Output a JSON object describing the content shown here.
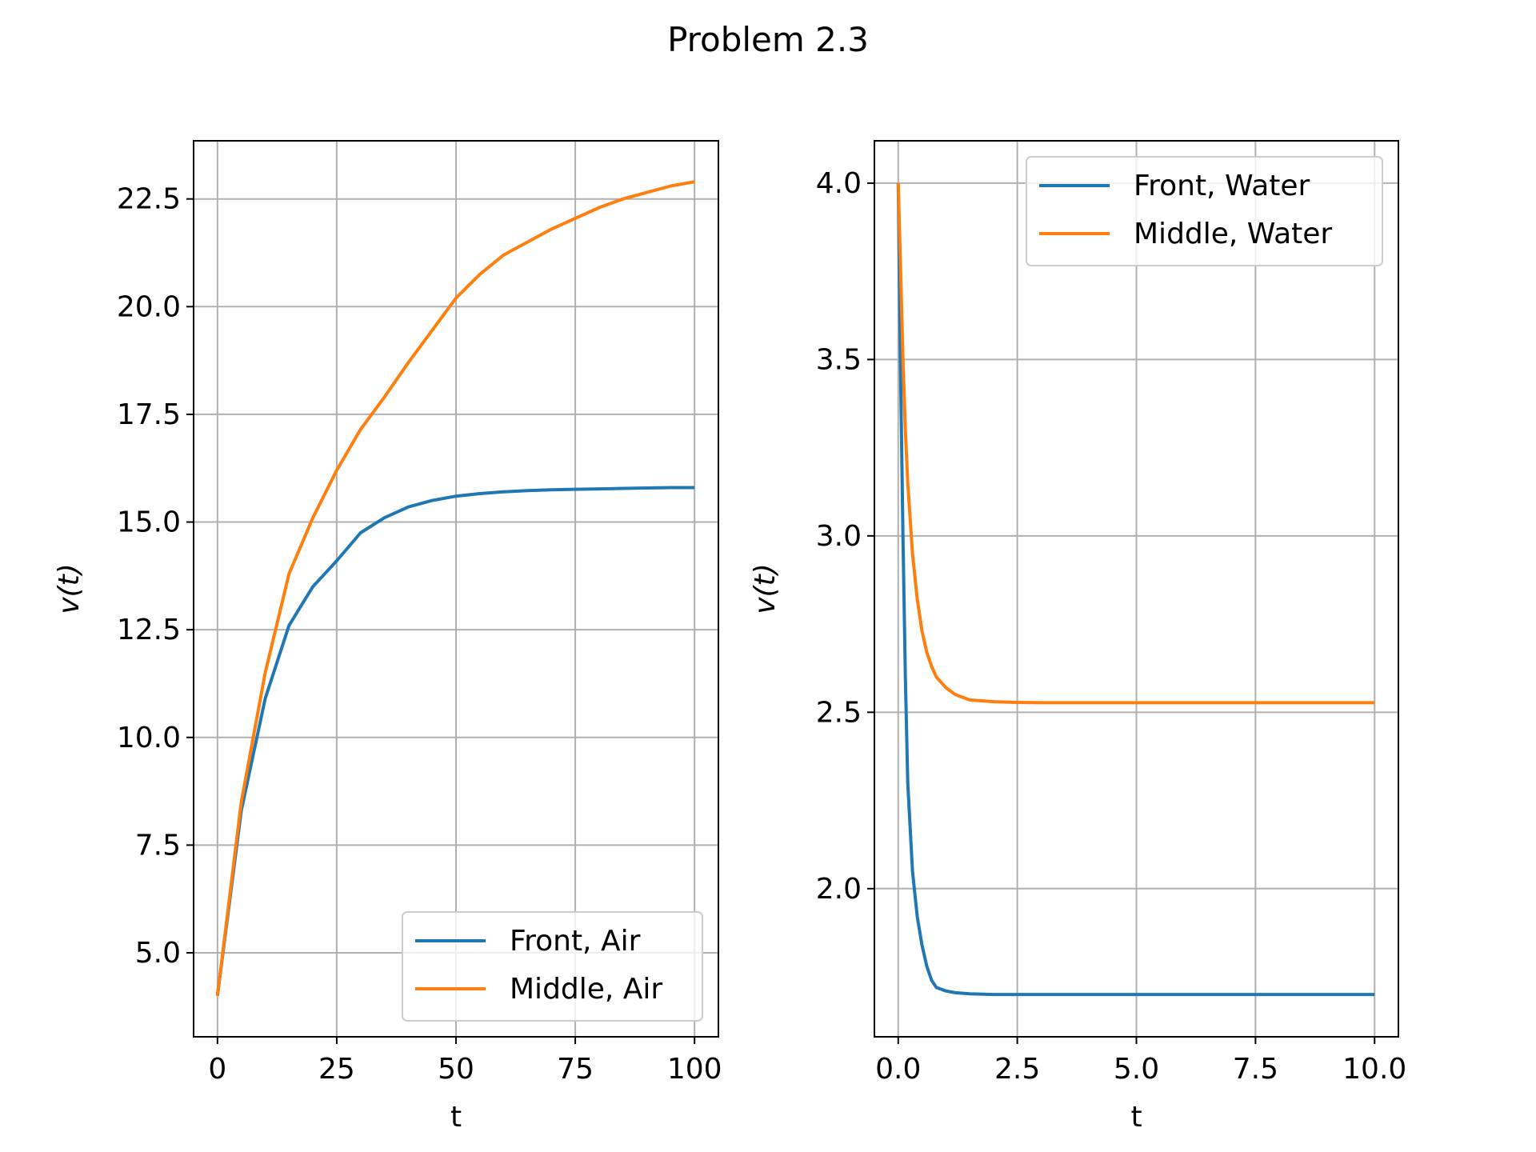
{
  "figure": {
    "title": "Problem 2.3"
  },
  "colors": {
    "front": "#1f77b4",
    "middle": "#ff7f0e",
    "grid": "#b0b0b0"
  },
  "chart_data": [
    {
      "type": "line",
      "xlabel": "t",
      "ylabel": "v(t)",
      "xlim": [
        -5,
        105
      ],
      "ylim": [
        3.05,
        23.85
      ],
      "xticks": [
        0,
        25,
        50,
        75,
        100
      ],
      "xtick_labels": [
        "0",
        "25",
        "50",
        "75",
        "100"
      ],
      "yticks": [
        5.0,
        7.5,
        10.0,
        12.5,
        15.0,
        17.5,
        20.0,
        22.5
      ],
      "ytick_labels": [
        "5.0",
        "7.5",
        "10.0",
        "12.5",
        "15.0",
        "17.5",
        "20.0",
        "22.5"
      ],
      "grid": true,
      "legend_position": "lower right",
      "series": [
        {
          "name": "Front, Air",
          "color": "#1f77b4",
          "x": [
            0,
            5,
            10,
            15,
            20,
            25,
            30,
            35,
            40,
            45,
            50,
            55,
            60,
            65,
            70,
            75,
            80,
            85,
            90,
            95,
            100
          ],
          "y": [
            4.0,
            8.3,
            10.9,
            12.6,
            13.5,
            14.1,
            14.75,
            15.1,
            15.35,
            15.5,
            15.6,
            15.66,
            15.7,
            15.73,
            15.75,
            15.76,
            15.77,
            15.78,
            15.79,
            15.8,
            15.8
          ]
        },
        {
          "name": "Middle, Air",
          "color": "#ff7f0e",
          "x": [
            0,
            5,
            10,
            15,
            20,
            25,
            30,
            35,
            40,
            45,
            50,
            55,
            60,
            65,
            70,
            75,
            80,
            85,
            90,
            95,
            100
          ],
          "y": [
            4.0,
            8.5,
            11.5,
            13.8,
            15.1,
            16.2,
            17.15,
            17.9,
            18.7,
            19.45,
            20.2,
            20.75,
            21.2,
            21.5,
            21.8,
            22.05,
            22.3,
            22.5,
            22.65,
            22.8,
            22.9
          ]
        }
      ]
    },
    {
      "type": "line",
      "xlabel": "t",
      "ylabel": "v(t)",
      "xlim": [
        -0.5,
        10.5
      ],
      "ylim": [
        1.58,
        4.12
      ],
      "xticks": [
        0.0,
        2.5,
        5.0,
        7.5,
        10.0
      ],
      "xtick_labels": [
        "0.0",
        "2.5",
        "5.0",
        "7.5",
        "10.0"
      ],
      "yticks": [
        2.0,
        2.5,
        3.0,
        3.5,
        4.0
      ],
      "ytick_labels": [
        "2.0",
        "2.5",
        "3.0",
        "3.5",
        "4.0"
      ],
      "grid": true,
      "legend_position": "upper right",
      "series": [
        {
          "name": "Front, Water",
          "color": "#1f77b4",
          "x": [
            0,
            0.05,
            0.1,
            0.15,
            0.2,
            0.3,
            0.4,
            0.5,
            0.6,
            0.7,
            0.8,
            1.0,
            1.2,
            1.5,
            2,
            3,
            5,
            7.5,
            10
          ],
          "y": [
            4.0,
            3.45,
            3.0,
            2.6,
            2.3,
            2.05,
            1.92,
            1.84,
            1.78,
            1.74,
            1.72,
            1.71,
            1.705,
            1.702,
            1.7,
            1.7,
            1.7,
            1.7,
            1.7
          ]
        },
        {
          "name": "Middle, Water",
          "color": "#ff7f0e",
          "x": [
            0,
            0.05,
            0.1,
            0.15,
            0.2,
            0.3,
            0.4,
            0.5,
            0.6,
            0.7,
            0.8,
            1.0,
            1.2,
            1.5,
            2,
            2.5,
            3,
            5,
            7.5,
            10
          ],
          "y": [
            4.0,
            3.75,
            3.5,
            3.3,
            3.15,
            2.95,
            2.82,
            2.73,
            2.67,
            2.63,
            2.6,
            2.57,
            2.55,
            2.535,
            2.53,
            2.528,
            2.527,
            2.527,
            2.527,
            2.527
          ]
        }
      ]
    }
  ]
}
